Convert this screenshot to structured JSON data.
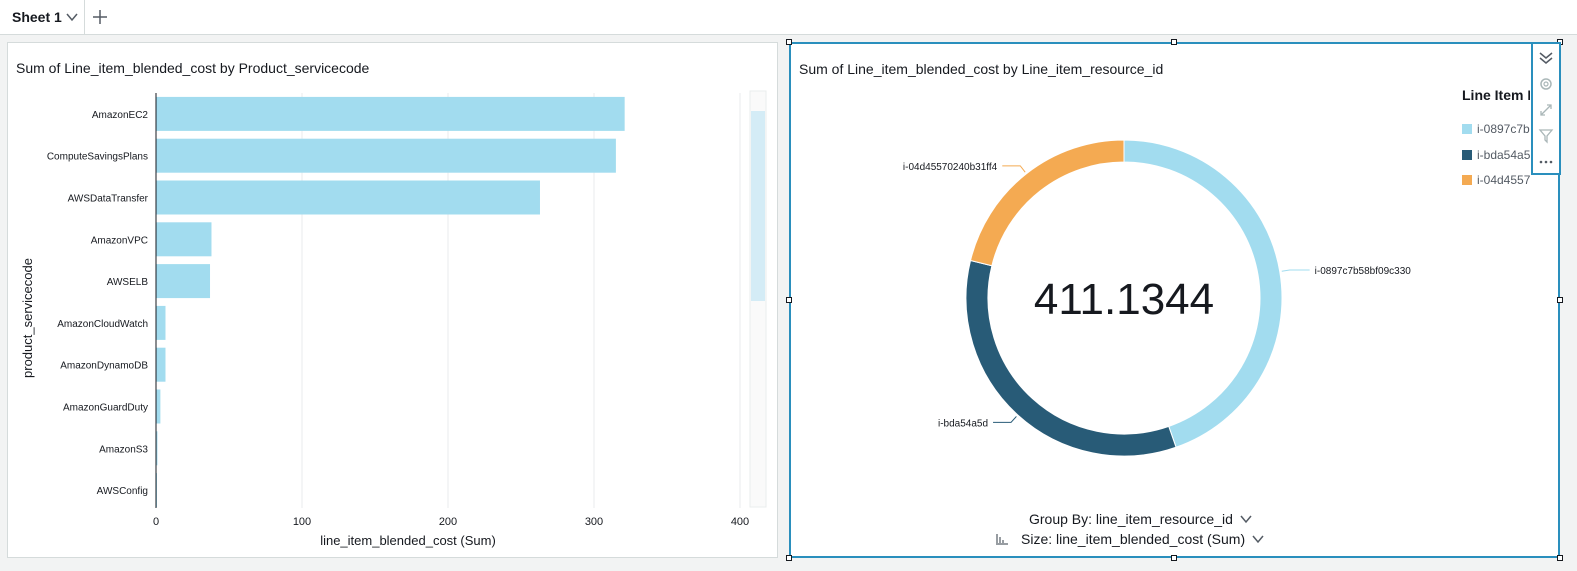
{
  "sheet_tab": {
    "label": "Sheet 1"
  },
  "left_visual": {
    "title": "Sum of Line_item_blended_cost by Product_servicecode"
  },
  "right_visual": {
    "title": "Sum of Line_item_blended_cost by Line_item_resource_id",
    "legend_title": "Line Item R",
    "legend_items": [
      "i-0897c7b",
      "i-bda54a5",
      "i-04d4557…"
    ],
    "group_by_label": "Group By: line_item_resource_id",
    "size_label": "Size: line_item_blended_cost (Sum)"
  },
  "colors": {
    "light_blue": "#a2dcef",
    "dark_blue": "#285b77",
    "orange": "#f4aa52",
    "accent": "#2a8fbd"
  },
  "icons": {
    "tab_chevron": "chevron-down-icon",
    "add_tab": "plus-icon",
    "tools": [
      "collapse-icon",
      "gear-icon",
      "expand-icon",
      "filter-icon",
      "more-icon"
    ]
  },
  "chart_data": [
    {
      "type": "bar",
      "orientation": "horizontal",
      "title": "Sum of Line_item_blended_cost by Product_servicecode",
      "categories": [
        "AmazonEC2",
        "ComputeSavingsPlans",
        "AWSDataTransfer",
        "AmazonVPC",
        "AWSELB",
        "AmazonCloudWatch",
        "AmazonDynamoDB",
        "AmazonGuardDuty",
        "AmazonS3",
        "AWSConfig"
      ],
      "values": [
        321,
        315,
        263,
        38,
        37,
        6.5,
        6.5,
        3,
        1,
        0.5
      ],
      "xlabel": "line_item_blended_cost (Sum)",
      "ylabel": "product_servicecode",
      "xlim": [
        0,
        420
      ],
      "xticks": [
        0,
        100,
        200,
        300,
        400
      ],
      "grid": true,
      "color": "#a2dcef"
    },
    {
      "type": "pie",
      "variant": "donut",
      "title": "Sum of Line_item_blended_cost by Line_item_resource_id",
      "center_label": "411.1344",
      "labels": [
        "i-0897c7b58bf09c330",
        "i-bda54a5d",
        "i-04d45570240b31ff4"
      ],
      "values": [
        183.6,
        140.4,
        87.1
      ],
      "colors": [
        "#a2dcef",
        "#285b77",
        "#f4aa52"
      ],
      "legend": "top-right"
    }
  ]
}
